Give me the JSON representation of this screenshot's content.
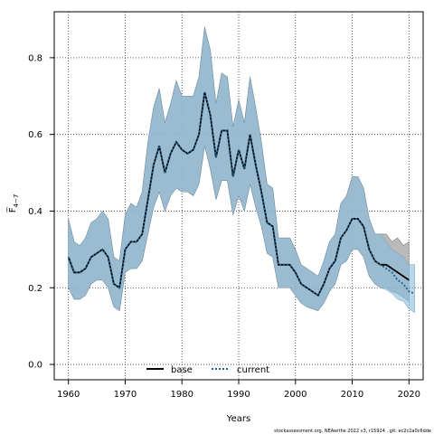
{
  "chart_data": {
    "type": "line",
    "xlabel": "Years",
    "ylabel": "F̅4−7",
    "ylabel_main": "F̅",
    "ylabel_sub": "4−7",
    "xlim": [
      1957.5,
      2022.5
    ],
    "ylim": [
      -0.04,
      0.92
    ],
    "x_ticks": [
      1960,
      1970,
      1980,
      1990,
      2000,
      2010,
      2020
    ],
    "y_ticks": [
      0.0,
      0.2,
      0.4,
      0.6,
      0.8
    ],
    "y_tick_labels": [
      "0.0",
      "0.2",
      "0.4",
      "0.6",
      "0.8"
    ],
    "grid": true,
    "legend_placement": "bottom-center",
    "footer": "stockassessment.org, NEAwithe 2022 v3, r15924 , git: ec2c2a0c6dde",
    "colors": {
      "base_line": "#000000",
      "base_band": "#a9a9a9",
      "current_line": "#1f5f8b",
      "current_band": "#87bde0",
      "grid": "#333333"
    },
    "series": [
      {
        "name": "base",
        "style": "solid",
        "x": [
          1960,
          1961,
          1962,
          1963,
          1964,
          1965,
          1966,
          1967,
          1968,
          1969,
          1970,
          1971,
          1972,
          1973,
          1974,
          1975,
          1976,
          1977,
          1978,
          1979,
          1980,
          1981,
          1982,
          1983,
          1984,
          1985,
          1986,
          1987,
          1988,
          1989,
          1990,
          1991,
          1992,
          1993,
          1994,
          1995,
          1996,
          1997,
          1998,
          1999,
          2000,
          2001,
          2002,
          2003,
          2004,
          2005,
          2006,
          2007,
          2008,
          2009,
          2010,
          2011,
          2012,
          2013,
          2014,
          2015,
          2016,
          2017,
          2018,
          2019,
          2020
        ],
        "y": [
          0.28,
          0.24,
          0.24,
          0.25,
          0.28,
          0.29,
          0.3,
          0.28,
          0.21,
          0.2,
          0.3,
          0.32,
          0.32,
          0.34,
          0.43,
          0.52,
          0.57,
          0.5,
          0.55,
          0.58,
          0.56,
          0.55,
          0.56,
          0.6,
          0.71,
          0.65,
          0.54,
          0.61,
          0.61,
          0.49,
          0.56,
          0.51,
          0.6,
          0.52,
          0.45,
          0.37,
          0.36,
          0.26,
          0.26,
          0.26,
          0.24,
          0.21,
          0.2,
          0.19,
          0.18,
          0.21,
          0.25,
          0.27,
          0.33,
          0.35,
          0.38,
          0.38,
          0.36,
          0.3,
          0.27,
          0.26,
          0.26,
          0.25,
          0.24,
          0.23,
          0.22
        ],
        "lower": [
          0.2,
          0.17,
          0.17,
          0.18,
          0.21,
          0.22,
          0.22,
          0.2,
          0.15,
          0.14,
          0.24,
          0.25,
          0.25,
          0.27,
          0.34,
          0.41,
          0.45,
          0.4,
          0.44,
          0.46,
          0.45,
          0.45,
          0.44,
          0.47,
          0.57,
          0.51,
          0.43,
          0.48,
          0.48,
          0.39,
          0.44,
          0.4,
          0.47,
          0.41,
          0.36,
          0.29,
          0.28,
          0.2,
          0.2,
          0.2,
          0.18,
          0.16,
          0.15,
          0.145,
          0.14,
          0.16,
          0.19,
          0.21,
          0.26,
          0.27,
          0.3,
          0.3,
          0.28,
          0.23,
          0.21,
          0.2,
          0.2,
          0.19,
          0.185,
          0.175,
          0.165
        ],
        "upper": [
          0.38,
          0.32,
          0.31,
          0.33,
          0.37,
          0.38,
          0.4,
          0.38,
          0.28,
          0.27,
          0.39,
          0.42,
          0.41,
          0.45,
          0.58,
          0.67,
          0.72,
          0.63,
          0.68,
          0.74,
          0.7,
          0.7,
          0.7,
          0.75,
          0.88,
          0.82,
          0.68,
          0.76,
          0.75,
          0.62,
          0.69,
          0.63,
          0.75,
          0.67,
          0.58,
          0.47,
          0.46,
          0.33,
          0.33,
          0.33,
          0.3,
          0.26,
          0.25,
          0.24,
          0.23,
          0.27,
          0.32,
          0.34,
          0.42,
          0.44,
          0.49,
          0.49,
          0.46,
          0.38,
          0.34,
          0.34,
          0.34,
          0.32,
          0.33,
          0.31,
          0.32
        ]
      },
      {
        "name": "current",
        "style": "dotted",
        "x": [
          1960,
          1961,
          1962,
          1963,
          1964,
          1965,
          1966,
          1967,
          1968,
          1969,
          1970,
          1971,
          1972,
          1973,
          1974,
          1975,
          1976,
          1977,
          1978,
          1979,
          1980,
          1981,
          1982,
          1983,
          1984,
          1985,
          1986,
          1987,
          1988,
          1989,
          1990,
          1991,
          1992,
          1993,
          1994,
          1995,
          1996,
          1997,
          1998,
          1999,
          2000,
          2001,
          2002,
          2003,
          2004,
          2005,
          2006,
          2007,
          2008,
          2009,
          2010,
          2011,
          2012,
          2013,
          2014,
          2015,
          2016,
          2017,
          2018,
          2019,
          2020,
          2021
        ],
        "y": [
          0.28,
          0.24,
          0.24,
          0.25,
          0.28,
          0.29,
          0.3,
          0.28,
          0.21,
          0.2,
          0.3,
          0.32,
          0.32,
          0.34,
          0.43,
          0.52,
          0.57,
          0.5,
          0.55,
          0.58,
          0.56,
          0.55,
          0.56,
          0.6,
          0.71,
          0.65,
          0.54,
          0.61,
          0.61,
          0.49,
          0.56,
          0.51,
          0.6,
          0.52,
          0.45,
          0.37,
          0.36,
          0.26,
          0.26,
          0.26,
          0.24,
          0.21,
          0.2,
          0.19,
          0.18,
          0.21,
          0.25,
          0.27,
          0.33,
          0.35,
          0.38,
          0.38,
          0.36,
          0.3,
          0.27,
          0.26,
          0.25,
          0.24,
          0.22,
          0.21,
          0.19,
          0.185
        ],
        "lower": [
          0.2,
          0.17,
          0.17,
          0.18,
          0.21,
          0.22,
          0.22,
          0.2,
          0.15,
          0.14,
          0.24,
          0.25,
          0.25,
          0.27,
          0.34,
          0.41,
          0.45,
          0.4,
          0.44,
          0.46,
          0.45,
          0.45,
          0.44,
          0.47,
          0.57,
          0.51,
          0.43,
          0.48,
          0.48,
          0.39,
          0.44,
          0.4,
          0.47,
          0.41,
          0.36,
          0.29,
          0.28,
          0.2,
          0.2,
          0.2,
          0.18,
          0.16,
          0.15,
          0.145,
          0.14,
          0.16,
          0.19,
          0.21,
          0.26,
          0.27,
          0.3,
          0.3,
          0.28,
          0.23,
          0.21,
          0.2,
          0.195,
          0.185,
          0.17,
          0.165,
          0.145,
          0.135
        ],
        "upper": [
          0.38,
          0.32,
          0.31,
          0.33,
          0.37,
          0.38,
          0.4,
          0.38,
          0.28,
          0.27,
          0.39,
          0.42,
          0.41,
          0.45,
          0.58,
          0.67,
          0.72,
          0.63,
          0.68,
          0.74,
          0.7,
          0.7,
          0.7,
          0.75,
          0.88,
          0.82,
          0.68,
          0.76,
          0.75,
          0.62,
          0.69,
          0.63,
          0.75,
          0.67,
          0.58,
          0.47,
          0.46,
          0.33,
          0.33,
          0.33,
          0.3,
          0.26,
          0.25,
          0.24,
          0.23,
          0.27,
          0.32,
          0.34,
          0.42,
          0.44,
          0.49,
          0.49,
          0.46,
          0.38,
          0.34,
          0.34,
          0.32,
          0.3,
          0.29,
          0.28,
          0.26,
          0.26
        ]
      }
    ]
  }
}
